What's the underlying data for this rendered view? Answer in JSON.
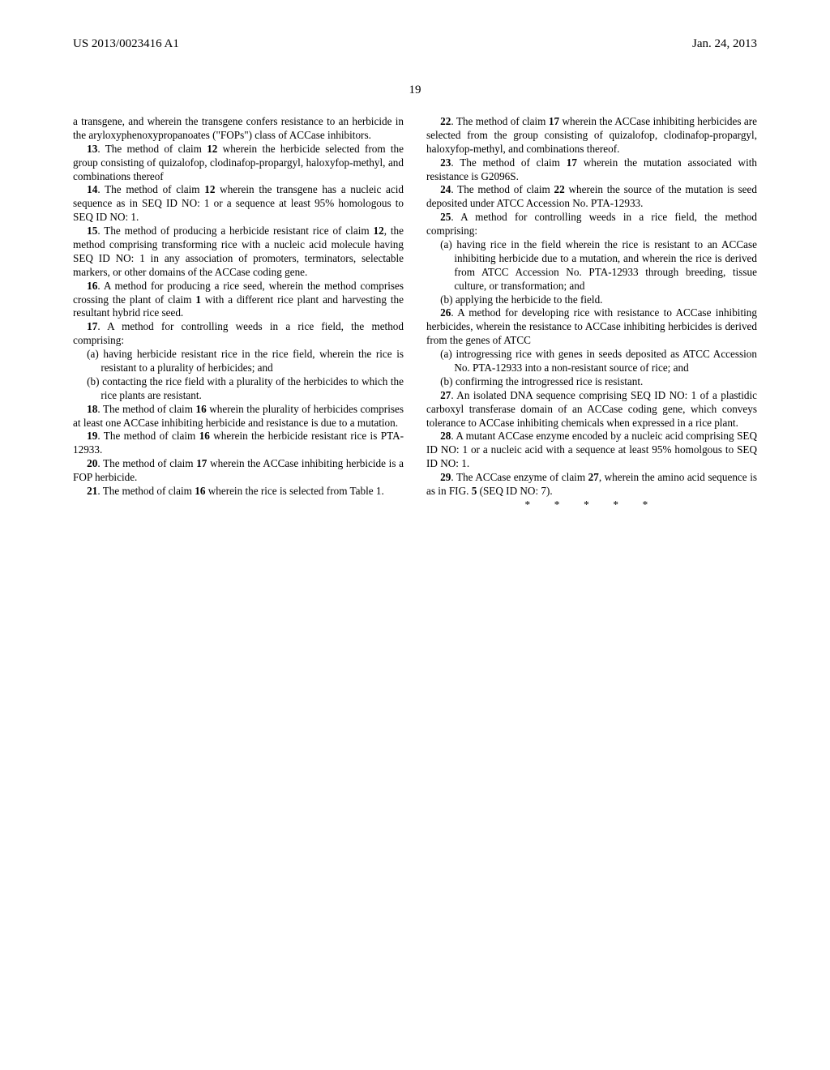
{
  "header": {
    "left": "US 2013/0023416 A1",
    "right": "Jan. 24, 2013"
  },
  "page_number": "19",
  "left_column": {
    "cont12": "a transgene, and wherein the transgene confers resistance to an herbicide in the aryloxyphenoxypropanoates (\"FOPs\") class of ACCase inhibitors.",
    "c13_no": "13",
    "c13": ". The method of claim ",
    "c13_ref": "12",
    "c13_tail": " wherein the herbicide selected from the group consisting of quizalofop, clodinafop-propargyl, haloxyfop-methyl, and combinations thereof",
    "c14_no": "14",
    "c14": ". The method of claim ",
    "c14_ref": "12",
    "c14_tail": " wherein the transgene has a nucleic acid sequence as in SEQ ID NO: 1 or a sequence at least 95% homologous to SEQ ID NO: 1.",
    "c15_no": "15",
    "c15": ". The method of producing a herbicide resistant rice of claim ",
    "c15_ref": "12",
    "c15_tail": ", the method comprising transforming rice with a nucleic acid molecule having SEQ ID NO: 1 in any association of promoters, terminators, selectable markers, or other domains of the ACCase coding gene.",
    "c16_no": "16",
    "c16": ". A method for producing a rice seed, wherein the method comprises crossing the plant of claim ",
    "c16_ref": "1",
    "c16_tail": " with a different rice plant and harvesting the resultant hybrid rice seed.",
    "c17_no": "17",
    "c17_tail": ". A method for controlling weeds in a rice field, the method comprising:",
    "c17a": "(a) having herbicide resistant rice in the rice field, wherein the rice is resistant to a plurality of herbicides; and",
    "c17b": "(b) contacting the rice field with a plurality of the herbicides to which the rice plants are resistant.",
    "c18_no": "18",
    "c18": ". The method of claim ",
    "c18_ref": "16",
    "c18_tail": " wherein the plurality of herbicides comprises at least one ACCase inhibiting herbicide and resistance is due to a mutation.",
    "c19_no": "19",
    "c19": ". The method of claim ",
    "c19_ref": "16",
    "c19_tail": " wherein the herbicide resistant rice is PTA-12933.",
    "c20_no": "20",
    "c20": ". The method of claim ",
    "c20_ref": "17",
    "c20_tail": " wherein the ACCase inhibiting herbicide is a FOP herbicide.",
    "c21_no": "21",
    "c21": ". The method of claim ",
    "c21_ref": "16",
    "c21_tail": " wherein the rice is selected from Table 1."
  },
  "right_column": {
    "c22_no": "22",
    "c22": ". The method of claim ",
    "c22_ref": "17",
    "c22_tail": " wherein the ACCase inhibiting herbicides are selected from the group consisting of quizalofop, clodinafop-propargyl, haloxyfop-methyl, and combinations thereof.",
    "c23_no": "23",
    "c23": ". The method of claim ",
    "c23_ref": "17",
    "c23_tail": " wherein the mutation associated with resistance is G2096S.",
    "c24_no": "24",
    "c24": ". The method of claim ",
    "c24_ref": "22",
    "c24_tail": " wherein the source of the mutation is seed deposited under ATCC Accession No. PTA-12933.",
    "c25_no": "25",
    "c25_tail": ". A method for controlling weeds in a rice field, the method comprising:",
    "c25a": "(a) having rice in the field wherein the rice is resistant to an ACCase inhibiting herbicide due to a mutation, and wherein the rice is derived from ATCC Accession No. PTA-12933 through breeding, tissue culture, or transformation; and",
    "c25b": "(b) applying the herbicide to the field.",
    "c26_no": "26",
    "c26_tail": ". A method for developing rice with resistance to ACCase inhibiting herbicides, wherein the resistance to ACCase inhibiting herbicides is derived from the genes of ATCC",
    "c26a": "(a) introgressing rice with genes in seeds deposited as ATCC Accession No. PTA-12933 into a non-resistant source of rice; and",
    "c26b": "(b) confirming the introgressed rice is resistant.",
    "c27_no": "27",
    "c27_tail": ". An isolated DNA sequence comprising SEQ ID NO: 1 of a plastidic carboxyl transferase domain of an ACCase coding gene, which conveys tolerance to ACCase inhibiting chemicals when expressed in a rice plant.",
    "c28_no": "28",
    "c28_tail": ". A mutant ACCase enzyme encoded by a nucleic acid comprising SEQ ID NO: 1 or a nucleic acid with a sequence at least 95% homolgous to SEQ ID NO: 1.",
    "c29_no": "29",
    "c29": ". The ACCase enzyme of claim ",
    "c29_ref": "27",
    "c29_mid": ", wherein the amino acid sequence is as in FIG. ",
    "c29_fig": "5",
    "c29_tail": " (SEQ ID NO: 7).",
    "stars": "* * * * *"
  }
}
